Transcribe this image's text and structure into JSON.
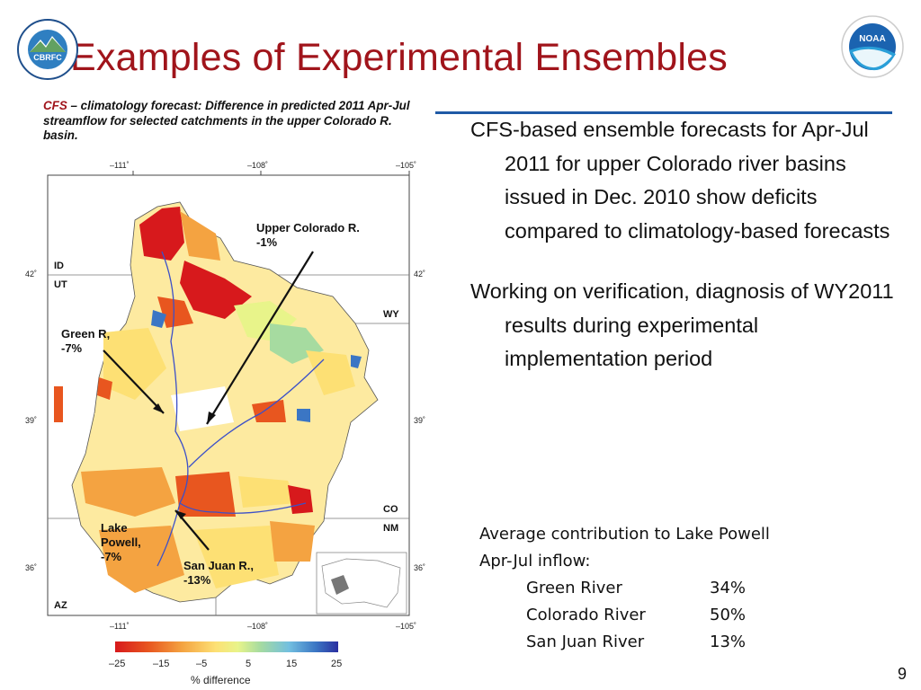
{
  "slide": {
    "title": "Examples of Experimental Ensembles",
    "page_number": "9"
  },
  "logos": {
    "left_text": "CBRFC",
    "left_ring": "COLORADO BASIN RIVER FORECAST CENTER",
    "right_text": "NOAA",
    "right_ring": "NATIONAL OCEANIC AND ATMOSPHERIC ADMINISTRATION · U.S. DEPARTMENT OF COMMERCE"
  },
  "figure": {
    "caption_prefix": "CFS",
    "caption": " – climatology forecast:  Difference in predicted 2011 Apr-Jul streamflow for selected catchments in the upper Colorado  R. basin.",
    "lon_ticks": [
      "–111˚",
      "–108˚",
      "–105˚"
    ],
    "lat_ticks": [
      "42˚",
      "39˚",
      "36˚"
    ],
    "states": [
      "ID",
      "UT",
      "WY",
      "CO",
      "NM",
      "AZ"
    ],
    "labels": {
      "upper_colorado": "Upper Colorado R.\n-1%",
      "green": "Green R,\n-7%",
      "lake_powell": "Lake\nPowell,\n-7%",
      "san_juan": "San Juan R.,\n-13%"
    },
    "colorbar": {
      "ticks": [
        "–25",
        "–15",
        "–5",
        "5",
        "15",
        "25"
      ],
      "label": "% difference",
      "colors": [
        "#d7191c",
        "#e8561f",
        "#f4a341",
        "#fde074",
        "#e8f48a",
        "#a6dba0",
        "#72bfe0",
        "#3b76c4",
        "#2a2fa0"
      ]
    }
  },
  "bullets": [
    "CFS-based ensemble forecasts for Apr-Jul 2011 for upper Colorado river basins issued in Dec. 2010 show deficits compared to climatology-based forecasts",
    "Working on verification, diagnosis of WY2011 results during experimental implementation period"
  ],
  "contribution": {
    "heading_line1": "Average contribution to Lake Powell",
    "heading_line2": "Apr-Jul inflow:",
    "rows": [
      {
        "name": "Green River",
        "value": "34%"
      },
      {
        "name": "Colorado River",
        "value": "50%"
      },
      {
        "name": "San Juan River",
        "value": "13%"
      }
    ]
  }
}
